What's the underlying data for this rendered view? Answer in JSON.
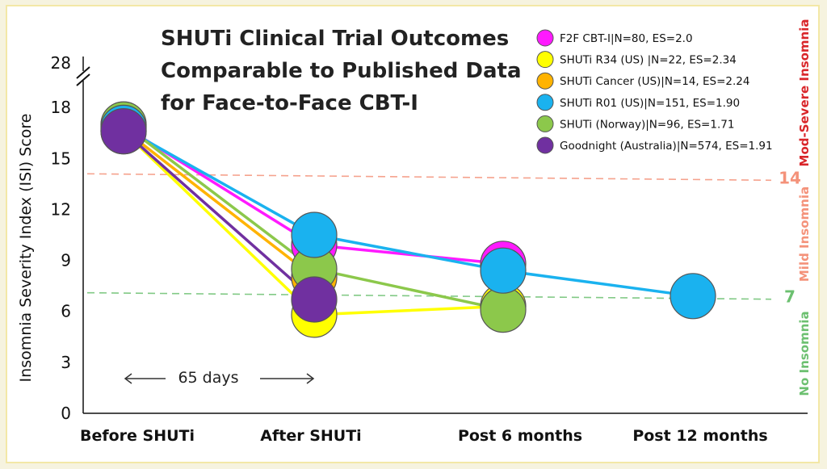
{
  "chart_data": {
    "type": "line",
    "title_lines": [
      "SHUTi Clinical Trial Outcomes",
      "Comparable to Published Data",
      "for Face-to-Face CBT-I"
    ],
    "ylabel": "Insomnia Severity Index (ISI) Score",
    "y_ticks": [
      "0",
      "3",
      "6",
      "9",
      "12",
      "15",
      "18"
    ],
    "y_top_tick": "28",
    "axis_break": true,
    "ylim": [
      0,
      20
    ],
    "categories": [
      "Before SHUTi",
      "After SHUTi",
      "Post 6 months",
      "Post 12 months"
    ],
    "series": [
      {
        "name": "F2F CBT-I|N=80, ES=2.0",
        "color": "#ff1aff",
        "values": [
          16.9,
          9.9,
          8.8,
          null
        ]
      },
      {
        "name": "SHUTi R34 (US) |N=22, ES=2.34",
        "color": "#ffff00",
        "values": [
          16.6,
          5.8,
          6.3,
          null
        ]
      },
      {
        "name": "SHUTi Cancer (US)|N=14, ES=2.24",
        "color": "#ffb300",
        "values": [
          16.7,
          8.0,
          null,
          null
        ]
      },
      {
        "name": "SHUTi R01 (US)|N=151, ES=1.90",
        "color": "#1ab2ef",
        "values": [
          16.8,
          10.5,
          8.4,
          6.9
        ]
      },
      {
        "name": "SHUTi (Norway)|N=96, ES=1.71",
        "color": "#8cc84b",
        "values": [
          17.0,
          8.5,
          6.1,
          null
        ]
      },
      {
        "name": "Goodnight (Australia)|N=574, ES=1.91",
        "color": "#7030a0",
        "values": [
          16.6,
          6.7,
          null,
          null
        ]
      }
    ],
    "reference_lines": [
      {
        "value": 14,
        "label": "14",
        "color": "#f4927a"
      },
      {
        "value": 7,
        "label": "7",
        "color": "#6cc070"
      }
    ],
    "zones": [
      {
        "label": "Mod-Severe Insomnia",
        "color": "#d9262a"
      },
      {
        "label": "Mild Insomnia",
        "color": "#f4927a"
      },
      {
        "label": "No Insomnia",
        "color": "#6cc070"
      }
    ],
    "annotation": "65 days",
    "legend_position": "top-right",
    "grid": false
  }
}
